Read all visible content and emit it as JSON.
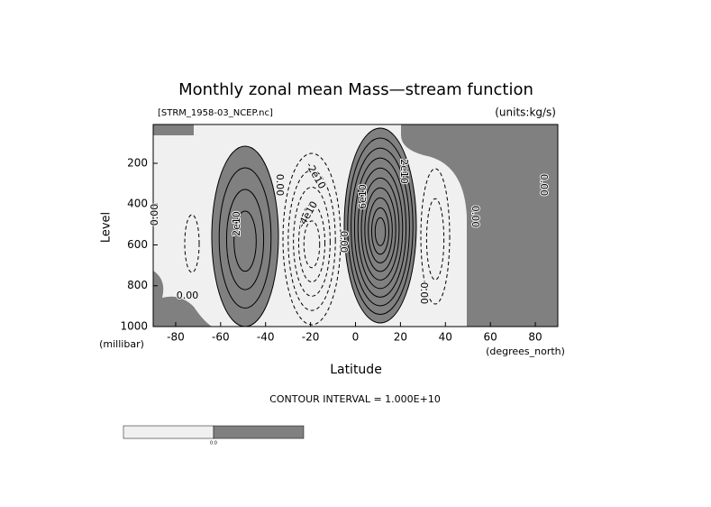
{
  "chart_data": {
    "type": "contour",
    "title": "Monthly zonal mean Mass—stream function",
    "subtitle_left": "[STRM_1958-03_NCEP.nc]",
    "subtitle_right": "(units:kg/s)",
    "x_label": "Latitude",
    "x_unit": "(degrees_north)",
    "y_label": "Level",
    "y_unit": "(millibar)",
    "xlim": [
      -90,
      90
    ],
    "xticks": [
      -80,
      -60,
      -40,
      -20,
      0,
      20,
      40,
      60,
      80
    ],
    "ylim": [
      1000,
      10
    ],
    "yticks": [
      200,
      400,
      600,
      800,
      1000
    ],
    "contour_interval": "CONTOUR INTERVAL = 1.000E+10",
    "colorbar_label": "0.0",
    "annotations": [
      "0.00",
      "0.00",
      "2e10",
      "-2e10",
      "-4e10",
      "0.00",
      "0.00",
      "6e10",
      "2e10",
      "0.00",
      "0.00",
      "0.00"
    ]
  }
}
